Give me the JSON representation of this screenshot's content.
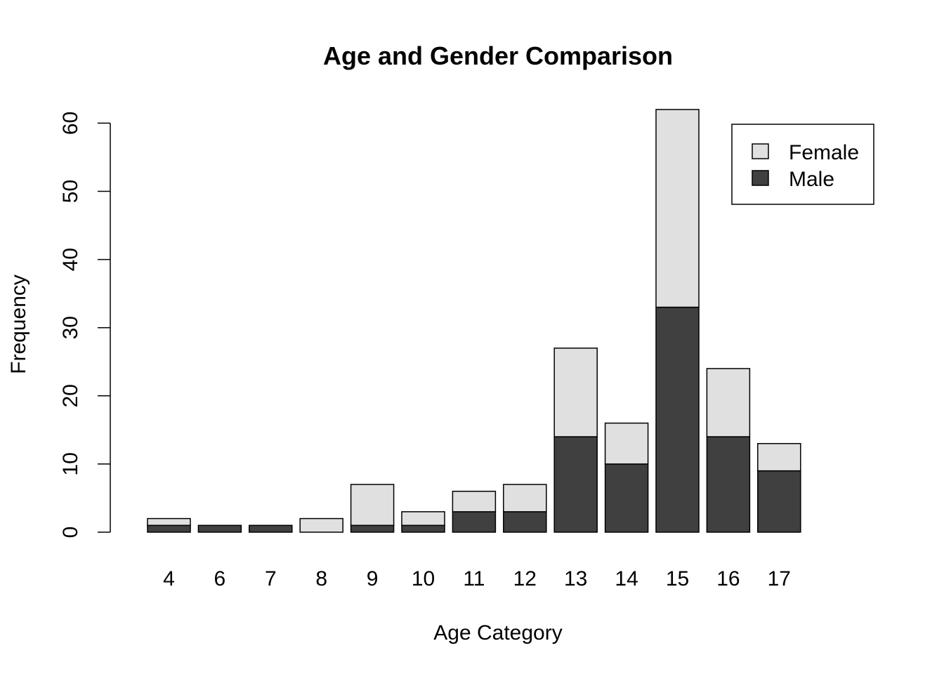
{
  "chart_data": {
    "type": "bar",
    "stacked": true,
    "title": "Age and Gender Comparison",
    "xlabel": "Age Category",
    "ylabel": "Frequency",
    "categories": [
      "4",
      "6",
      "7",
      "8",
      "9",
      "10",
      "11",
      "12",
      "13",
      "14",
      "15",
      "16",
      "17"
    ],
    "series": [
      {
        "name": "Male",
        "color": "#404040",
        "values": [
          1,
          1,
          1,
          0,
          1,
          1,
          3,
          3,
          14,
          10,
          33,
          14,
          9
        ]
      },
      {
        "name": "Female",
        "color": "#e0e0e0",
        "values": [
          1,
          0,
          0,
          2,
          6,
          2,
          3,
          4,
          13,
          6,
          29,
          10,
          4
        ]
      }
    ],
    "yticks": [
      0,
      10,
      20,
      30,
      40,
      50,
      60
    ],
    "ylim": [
      0,
      62
    ],
    "legend": {
      "position": "top-right",
      "entries": [
        "Female",
        "Male"
      ]
    }
  }
}
